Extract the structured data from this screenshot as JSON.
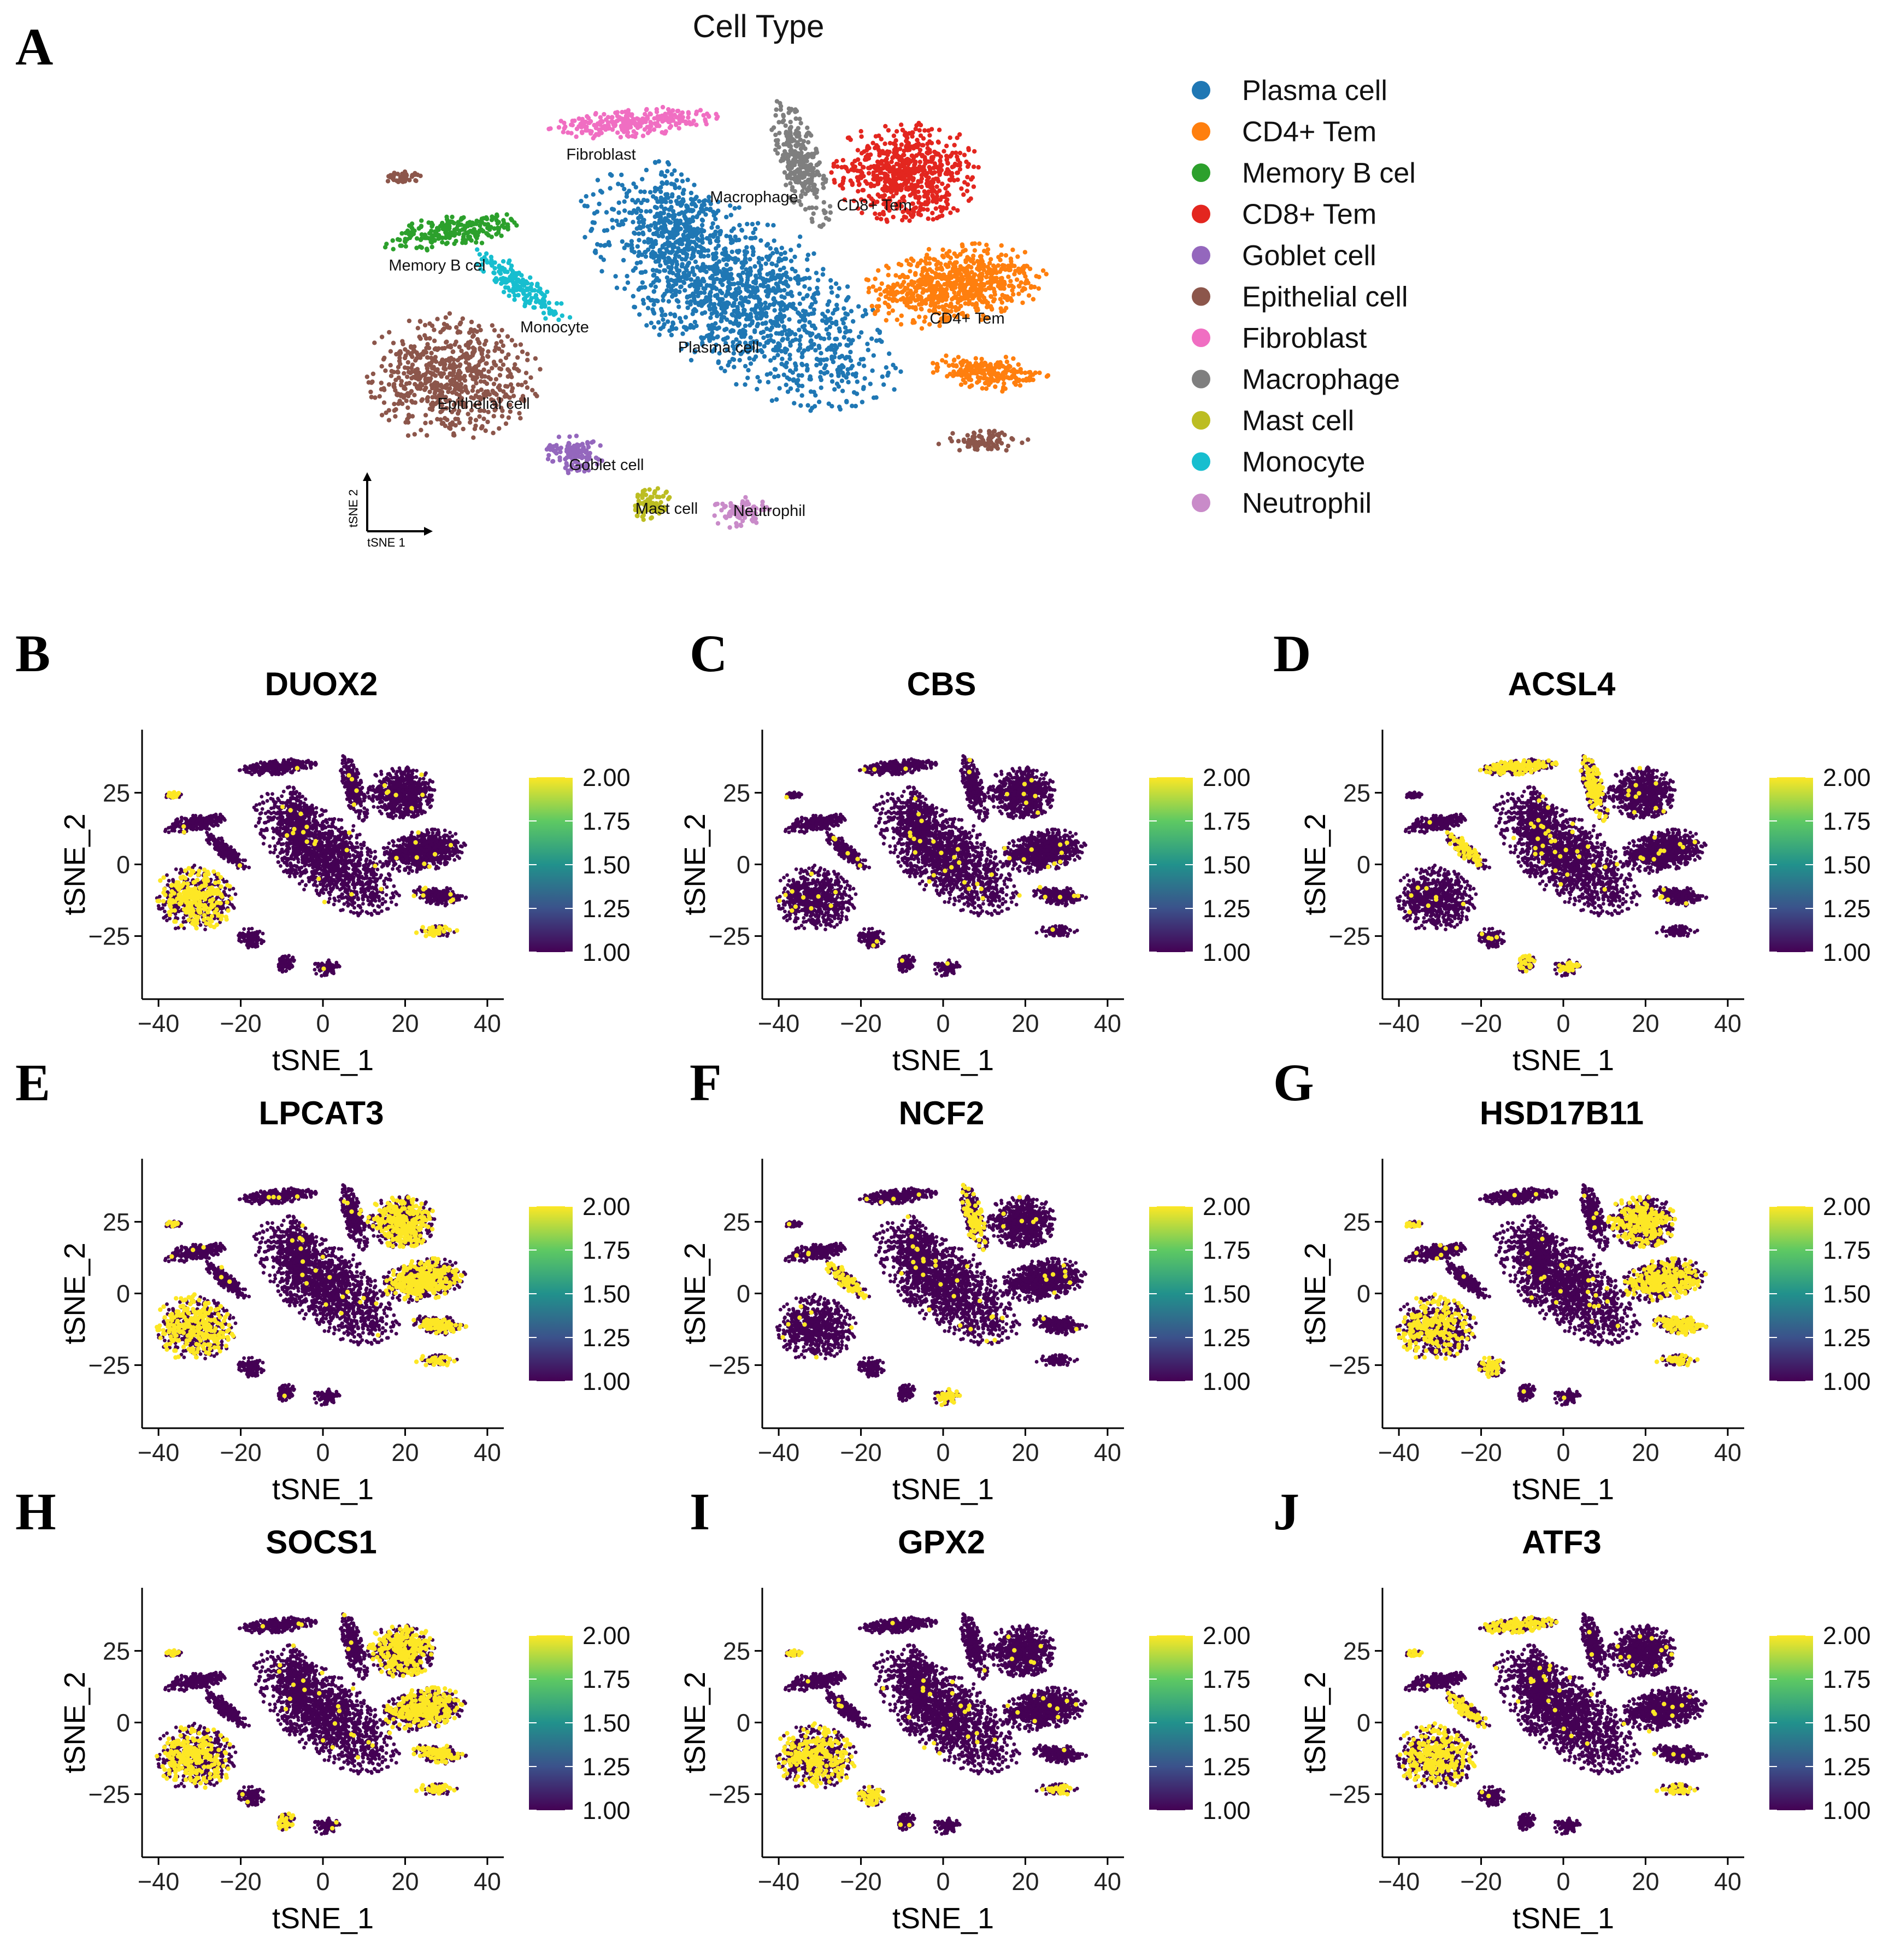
{
  "panel_a": {
    "letter": "A",
    "title": "Cell Type",
    "axis_x": "tSNE 1",
    "axis_y": "tSNE 2",
    "legend": [
      {
        "label": "Plasma cell",
        "color": "#1F77B4"
      },
      {
        "label": "CD4+ Tem",
        "color": "#FF7F0E"
      },
      {
        "label": "Memory B cel",
        "color": "#2CA02C"
      },
      {
        "label": "CD8+ Tem",
        "color": "#E3261F"
      },
      {
        "label": "Goblet cell",
        "color": "#9467BD"
      },
      {
        "label": "Epithelial cell",
        "color": "#8C564B"
      },
      {
        "label": "Fibroblast",
        "color": "#F06EC2"
      },
      {
        "label": "Macrophage",
        "color": "#7F7F7F"
      },
      {
        "label": "Mast cell",
        "color": "#BCBD22"
      },
      {
        "label": "Monocyte",
        "color": "#17BECF"
      },
      {
        "label": "Neutrophil",
        "color": "#C98BC9"
      }
    ],
    "cluster_labels": [
      "Fibroblast",
      "Macrophage",
      "CD8+ Tem",
      "Memory B cel",
      "Monocyte",
      "Plasma cell",
      "CD4+ Tem",
      "Epithelial cell",
      "Goblet cell",
      "Mast cell",
      "Neutrophil"
    ]
  },
  "feature_common": {
    "x_label": "tSNE_1",
    "y_label": "tSNE_2",
    "x_ticks": [
      "−40",
      "−20",
      "0",
      "20",
      "40"
    ],
    "y_ticks": [
      "25",
      "0",
      "−25"
    ],
    "colorbar_ticks": [
      "2.00",
      "1.75",
      "1.50",
      "1.25",
      "1.00"
    ],
    "low_color": "#440154",
    "high_color": "#FDE725"
  },
  "panels": [
    {
      "letter": "B",
      "gene": "DUOX2"
    },
    {
      "letter": "C",
      "gene": "CBS"
    },
    {
      "letter": "D",
      "gene": "ACSL4"
    },
    {
      "letter": "E",
      "gene": "LPCAT3"
    },
    {
      "letter": "F",
      "gene": "NCF2"
    },
    {
      "letter": "G",
      "gene": "HSD17B11"
    },
    {
      "letter": "H",
      "gene": "SOCS1"
    },
    {
      "letter": "I",
      "gene": "GPX2"
    },
    {
      "letter": "J",
      "gene": "ATF3"
    }
  ],
  "chart_data": [
    {
      "type": "scatter",
      "title": "Cell Type",
      "xlabel": "tSNE 1",
      "ylabel": "tSNE 2",
      "series": [
        {
          "name": "Plasma cell",
          "center": [
            0,
            0
          ]
        },
        {
          "name": "CD4+ Tem",
          "center": [
            27,
            3
          ]
        },
        {
          "name": "Memory B cel",
          "center": [
            -28,
            13
          ]
        },
        {
          "name": "CD8+ Tem",
          "center": [
            18,
            20
          ]
        },
        {
          "name": "Goblet cell",
          "center": [
            -10,
            -27
          ]
        },
        {
          "name": "Epithelial cell",
          "center": [
            -28,
            -12
          ]
        },
        {
          "name": "Fibroblast",
          "center": [
            -12,
            28
          ]
        },
        {
          "name": "Macrophage",
          "center": [
            6,
            27
          ]
        },
        {
          "name": "Mast cell",
          "center": [
            -3,
            -34
          ]
        },
        {
          "name": "Monocyte",
          "center": [
            -15,
            2
          ]
        },
        {
          "name": "Neutrophil",
          "center": [
            4,
            -33
          ]
        }
      ]
    },
    {
      "type": "scatter",
      "title": "DUOX2",
      "xlabel": "tSNE_1",
      "ylabel": "tSNE_2",
      "xlim": [
        -44,
        44
      ],
      "ylim": [
        -47,
        47
      ],
      "colorbar_range": [
        1.0,
        2.0
      ],
      "high_expression_clusters": [
        "Epithelial cell"
      ]
    },
    {
      "type": "scatter",
      "title": "CBS",
      "xlabel": "tSNE_1",
      "ylabel": "tSNE_2",
      "xlim": [
        -44,
        44
      ],
      "ylim": [
        -47,
        47
      ],
      "colorbar_range": [
        1.0,
        2.0
      ],
      "high_expression_clusters": []
    },
    {
      "type": "scatter",
      "title": "ACSL4",
      "xlabel": "tSNE_1",
      "ylabel": "tSNE_2",
      "xlim": [
        -44,
        44
      ],
      "ylim": [
        -47,
        47
      ],
      "colorbar_range": [
        1.0,
        2.0
      ],
      "high_expression_clusters": [
        "Fibroblast",
        "Macrophage",
        "Mast cell",
        "Neutrophil",
        "Monocyte"
      ]
    },
    {
      "type": "scatter",
      "title": "LPCAT3",
      "xlabel": "tSNE_1",
      "ylabel": "tSNE_2",
      "xlim": [
        -44,
        44
      ],
      "ylim": [
        -47,
        47
      ],
      "colorbar_range": [
        1.0,
        2.0
      ],
      "high_expression_clusters": [
        "Epithelial cell",
        "CD8+ Tem",
        "CD4+ Tem"
      ]
    },
    {
      "type": "scatter",
      "title": "NCF2",
      "xlabel": "tSNE_1",
      "ylabel": "tSNE_2",
      "xlim": [
        -44,
        44
      ],
      "ylim": [
        -47,
        47
      ],
      "colorbar_range": [
        1.0,
        2.0
      ],
      "high_expression_clusters": [
        "Macrophage",
        "Neutrophil",
        "Monocyte"
      ]
    },
    {
      "type": "scatter",
      "title": "HSD17B11",
      "xlabel": "tSNE_1",
      "ylabel": "tSNE_2",
      "xlim": [
        -44,
        44
      ],
      "ylim": [
        -47,
        47
      ],
      "colorbar_range": [
        1.0,
        2.0
      ],
      "high_expression_clusters": [
        "Epithelial cell",
        "CD8+ Tem",
        "CD4+ Tem",
        "Goblet cell"
      ]
    },
    {
      "type": "scatter",
      "title": "SOCS1",
      "xlabel": "tSNE_1",
      "ylabel": "tSNE_2",
      "xlim": [
        -44,
        44
      ],
      "ylim": [
        -47,
        47
      ],
      "colorbar_range": [
        1.0,
        2.0
      ],
      "high_expression_clusters": [
        "CD8+ Tem",
        "CD4+ Tem",
        "Epithelial cell",
        "Mast cell"
      ]
    },
    {
      "type": "scatter",
      "title": "GPX2",
      "xlabel": "tSNE_1",
      "ylabel": "tSNE_2",
      "xlim": [
        -44,
        44
      ],
      "ylim": [
        -47,
        47
      ],
      "colorbar_range": [
        1.0,
        2.0
      ],
      "high_expression_clusters": [
        "Epithelial cell",
        "Goblet cell"
      ]
    },
    {
      "type": "scatter",
      "title": "ATF3",
      "xlabel": "tSNE_1",
      "ylabel": "tSNE_2",
      "xlim": [
        -44,
        44
      ],
      "ylim": [
        -47,
        47
      ],
      "colorbar_range": [
        1.0,
        2.0
      ],
      "high_expression_clusters": [
        "Fibroblast",
        "Epithelial cell",
        "Monocyte"
      ]
    }
  ]
}
